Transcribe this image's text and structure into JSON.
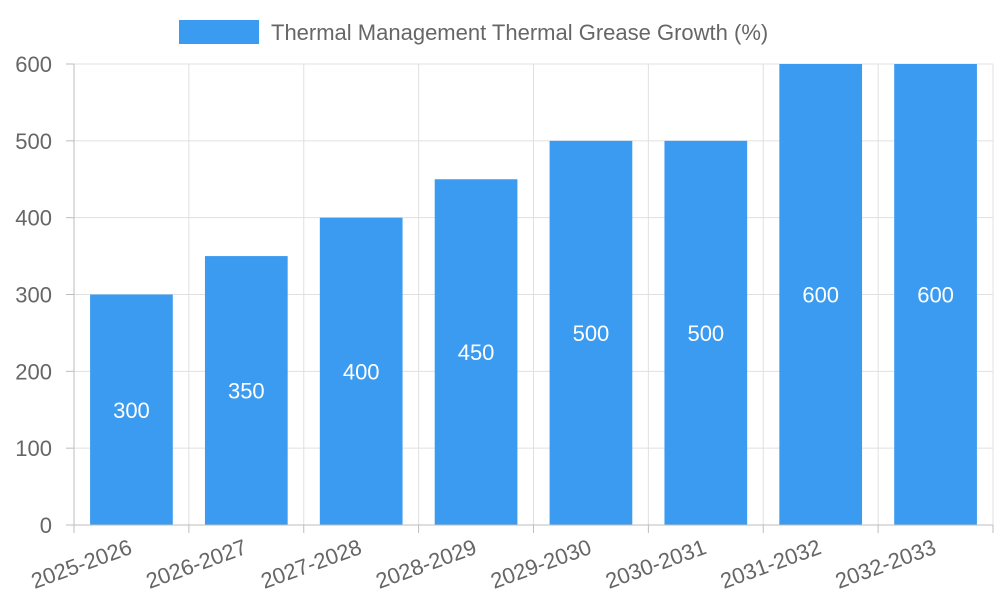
{
  "chart_data": {
    "type": "bar",
    "title": "",
    "xlabel": "",
    "ylabel": "",
    "categories": [
      "2025-2026",
      "2026-2027",
      "2027-2028",
      "2028-2029",
      "2029-2030",
      "2030-2031",
      "2031-2032",
      "2032-2033"
    ],
    "series": [
      {
        "name": "Thermal Management Thermal Grease Growth (%)",
        "values": [
          300,
          350,
          400,
          450,
          500,
          500,
          600,
          600
        ],
        "color": "#3A9BF0"
      }
    ],
    "ylim": [
      0,
      600
    ],
    "yticks": [
      0,
      100,
      200,
      300,
      400,
      500,
      600
    ],
    "grid": true,
    "legend_position": "top-center",
    "data_labels": true
  }
}
